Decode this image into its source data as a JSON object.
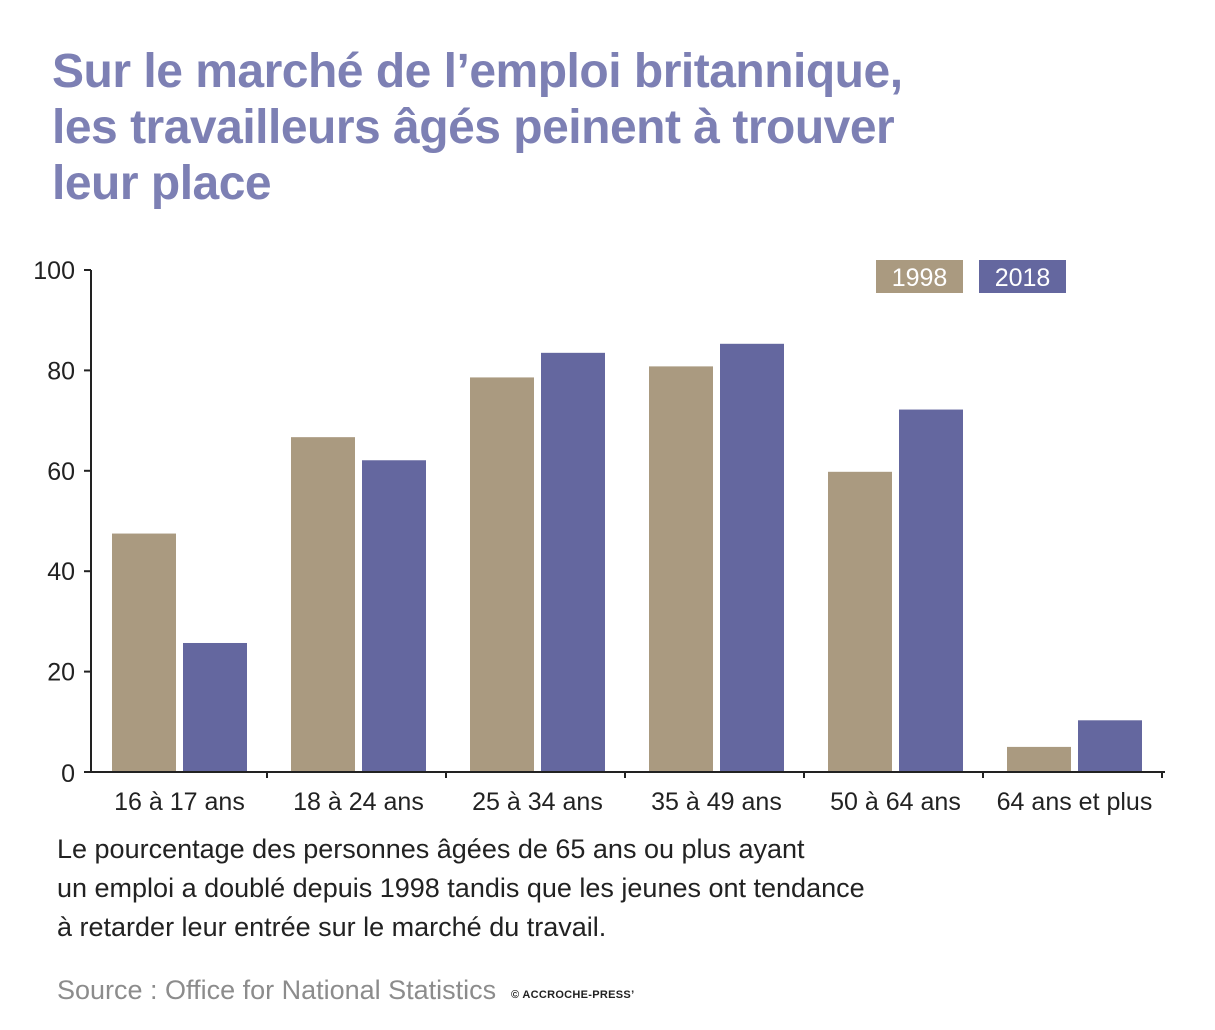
{
  "title_lines": [
    "Sur le marché de l’emploi britannique,",
    "les travailleurs âgés peinent à trouver",
    "leur place"
  ],
  "caption_lines": [
    "Le pourcentage des personnes âgées de 65 ans ou plus ayant",
    "un emploi a doublé depuis 1998 tandis que les jeunes ont tendance",
    "à retarder leur entrée sur le marché du travail."
  ],
  "source": "Source : Office for National Statistics",
  "credit": "© ACCROCHE-PRESS’",
  "chart_data": {
    "type": "bar",
    "categories": [
      "16 à 17 ans",
      "18 à 24 ans",
      "25 à 34 ans",
      "35 à 49 ans",
      "50 à 64 ans",
      "64 ans et plus"
    ],
    "series": [
      {
        "name": "1998",
        "color": "#aa9a80",
        "values": [
          47.5,
          66.7,
          78.6,
          80.8,
          59.8,
          5
        ]
      },
      {
        "name": "2018",
        "color": "#64679f",
        "values": [
          25.7,
          62.1,
          83.5,
          85.3,
          72.2,
          10.3
        ]
      }
    ],
    "ylim": [
      0,
      100
    ],
    "yticks": [
      0,
      20,
      40,
      60,
      80,
      100
    ],
    "grid": false,
    "legend_position": "top-right"
  }
}
